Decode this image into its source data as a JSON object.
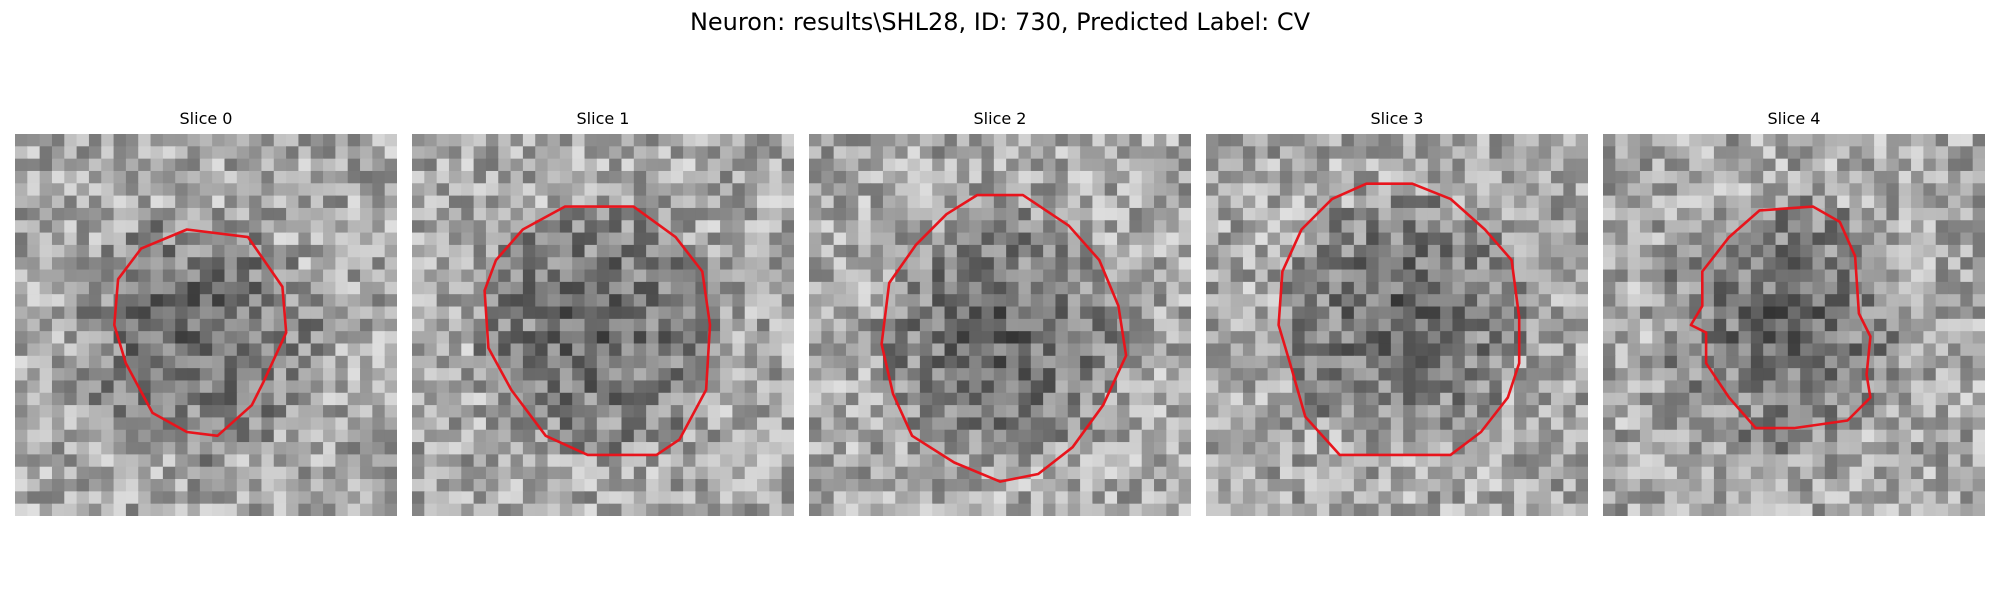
{
  "title": "Neuron: results\\SHL28, ID: 730, Predicted Label: CV",
  "contour_color": "#e8141c",
  "panels": [
    {
      "label": "Slice 0",
      "seed": 11,
      "contour": [
        [
          0.45,
          0.25
        ],
        [
          0.61,
          0.27
        ],
        [
          0.7,
          0.4
        ],
        [
          0.71,
          0.52
        ],
        [
          0.65,
          0.65
        ],
        [
          0.62,
          0.71
        ],
        [
          0.53,
          0.79
        ],
        [
          0.45,
          0.78
        ],
        [
          0.36,
          0.73
        ],
        [
          0.29,
          0.6
        ],
        [
          0.26,
          0.5
        ],
        [
          0.27,
          0.38
        ],
        [
          0.33,
          0.3
        ]
      ]
    },
    {
      "label": "Slice 1",
      "seed": 23,
      "contour": [
        [
          0.4,
          0.19
        ],
        [
          0.58,
          0.19
        ],
        [
          0.69,
          0.27
        ],
        [
          0.76,
          0.36
        ],
        [
          0.78,
          0.5
        ],
        [
          0.77,
          0.67
        ],
        [
          0.7,
          0.8
        ],
        [
          0.64,
          0.84
        ],
        [
          0.46,
          0.84
        ],
        [
          0.35,
          0.79
        ],
        [
          0.26,
          0.67
        ],
        [
          0.2,
          0.56
        ],
        [
          0.19,
          0.41
        ],
        [
          0.22,
          0.33
        ],
        [
          0.29,
          0.25
        ]
      ]
    },
    {
      "label": "Slice 2",
      "seed": 37,
      "contour": [
        [
          0.44,
          0.16
        ],
        [
          0.56,
          0.16
        ],
        [
          0.68,
          0.24
        ],
        [
          0.76,
          0.33
        ],
        [
          0.81,
          0.45
        ],
        [
          0.83,
          0.58
        ],
        [
          0.77,
          0.71
        ],
        [
          0.69,
          0.82
        ],
        [
          0.6,
          0.89
        ],
        [
          0.5,
          0.91
        ],
        [
          0.38,
          0.86
        ],
        [
          0.27,
          0.79
        ],
        [
          0.22,
          0.68
        ],
        [
          0.19,
          0.55
        ],
        [
          0.21,
          0.39
        ],
        [
          0.28,
          0.29
        ],
        [
          0.36,
          0.21
        ]
      ]
    },
    {
      "label": "Slice 3",
      "seed": 53,
      "contour": [
        [
          0.42,
          0.13
        ],
        [
          0.54,
          0.13
        ],
        [
          0.64,
          0.17
        ],
        [
          0.73,
          0.25
        ],
        [
          0.8,
          0.33
        ],
        [
          0.82,
          0.48
        ],
        [
          0.82,
          0.6
        ],
        [
          0.79,
          0.69
        ],
        [
          0.72,
          0.78
        ],
        [
          0.64,
          0.84
        ],
        [
          0.5,
          0.84
        ],
        [
          0.35,
          0.84
        ],
        [
          0.26,
          0.74
        ],
        [
          0.22,
          0.6
        ],
        [
          0.19,
          0.5
        ],
        [
          0.2,
          0.36
        ],
        [
          0.25,
          0.25
        ],
        [
          0.33,
          0.17
        ]
      ]
    },
    {
      "label": "Slice 4",
      "seed": 71,
      "contour": [
        [
          0.41,
          0.2
        ],
        [
          0.55,
          0.19
        ],
        [
          0.62,
          0.23
        ],
        [
          0.66,
          0.32
        ],
        [
          0.67,
          0.47
        ],
        [
          0.7,
          0.53
        ],
        [
          0.69,
          0.63
        ],
        [
          0.7,
          0.69
        ],
        [
          0.64,
          0.75
        ],
        [
          0.5,
          0.77
        ],
        [
          0.4,
          0.77
        ],
        [
          0.33,
          0.69
        ],
        [
          0.27,
          0.6
        ],
        [
          0.27,
          0.52
        ],
        [
          0.23,
          0.5
        ],
        [
          0.26,
          0.45
        ],
        [
          0.26,
          0.36
        ],
        [
          0.33,
          0.27
        ]
      ]
    }
  ]
}
